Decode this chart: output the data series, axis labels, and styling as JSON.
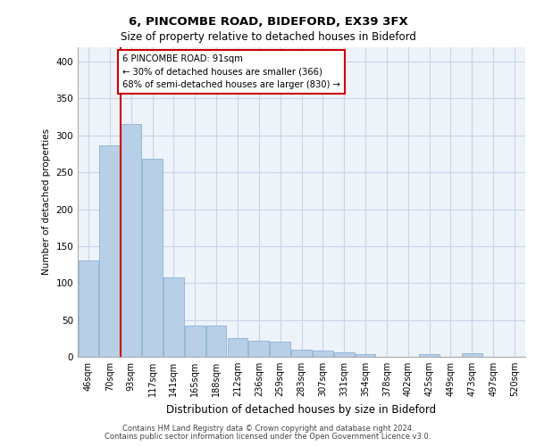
{
  "title1": "6, PINCOMBE ROAD, BIDEFORD, EX39 3FX",
  "title2": "Size of property relative to detached houses in Bideford",
  "xlabel": "Distribution of detached houses by size in Bideford",
  "ylabel": "Number of detached properties",
  "categories": [
    "46sqm",
    "70sqm",
    "93sqm",
    "117sqm",
    "141sqm",
    "165sqm",
    "188sqm",
    "212sqm",
    "236sqm",
    "259sqm",
    "283sqm",
    "307sqm",
    "331sqm",
    "354sqm",
    "378sqm",
    "402sqm",
    "425sqm",
    "449sqm",
    "473sqm",
    "497sqm",
    "520sqm"
  ],
  "values": [
    130,
    287,
    315,
    268,
    107,
    42,
    42,
    25,
    22,
    20,
    10,
    8,
    6,
    4,
    0,
    0,
    4,
    0,
    5,
    0,
    0
  ],
  "bar_color": "#b8cfe8",
  "bar_edge_color": "#7aaacf",
  "grid_color": "#c8d4e8",
  "background_color": "#eef2f9",
  "redline_index": 2,
  "redline_color": "#cc0000",
  "annotation_text": "6 PINCOMBE ROAD: 91sqm\n← 30% of detached houses are smaller (366)\n68% of semi-detached houses are larger (830) →",
  "annotation_box_color": "#ffffff",
  "annotation_box_edge": "#cc0000",
  "ylim": [
    0,
    420
  ],
  "yticks": [
    0,
    50,
    100,
    150,
    200,
    250,
    300,
    350,
    400
  ],
  "footer1": "Contains HM Land Registry data © Crown copyright and database right 2024.",
  "footer2": "Contains public sector information licensed under the Open Government Licence v3.0."
}
